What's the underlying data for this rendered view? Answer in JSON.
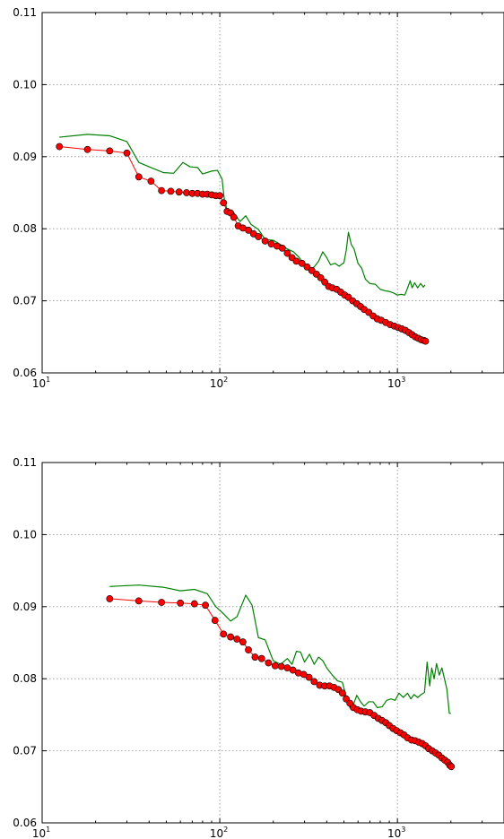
{
  "chart_data": [
    {
      "type": "line",
      "title": "",
      "xlabel": "",
      "ylabel": "",
      "xscale": "log",
      "xlim": [
        10,
        3981
      ],
      "ylim": [
        0.06,
        0.11
      ],
      "grid": true,
      "x_ticks": [
        {
          "base": "10",
          "exp": "1"
        },
        {
          "base": "10",
          "exp": "2"
        },
        {
          "base": "10",
          "exp": "3"
        }
      ],
      "y_ticks": [
        "0.06",
        "0.07",
        "0.08",
        "0.09",
        "0.10",
        "0.11"
      ],
      "series": [
        {
          "style": "line",
          "color": "#008000",
          "points": [
            [
              12.5,
              0.0927
            ],
            [
              18,
              0.0931
            ],
            [
              24,
              0.0929
            ],
            [
              30,
              0.0921
            ],
            [
              35,
              0.0892
            ],
            [
              40,
              0.0886
            ],
            [
              48,
              0.0878
            ],
            [
              55,
              0.0877
            ],
            [
              62,
              0.0892
            ],
            [
              68,
              0.0886
            ],
            [
              75,
              0.0885
            ],
            [
              80,
              0.0876
            ],
            [
              90,
              0.088
            ],
            [
              97,
              0.0881
            ],
            [
              103,
              0.0869
            ],
            [
              106,
              0.0841
            ],
            [
              110,
              0.0826
            ],
            [
              120,
              0.0822
            ],
            [
              130,
              0.081
            ],
            [
              140,
              0.0818
            ],
            [
              150,
              0.0806
            ],
            [
              165,
              0.0799
            ],
            [
              180,
              0.0785
            ],
            [
              200,
              0.0784
            ],
            [
              220,
              0.0778
            ],
            [
              240,
              0.0772
            ],
            [
              260,
              0.0768
            ],
            [
              280,
              0.076
            ],
            [
              300,
              0.075
            ],
            [
              320,
              0.0743
            ],
            [
              340,
              0.0747
            ],
            [
              360,
              0.0755
            ],
            [
              380,
              0.0768
            ],
            [
              400,
              0.076
            ],
            [
              420,
              0.075
            ],
            [
              445,
              0.0752
            ],
            [
              470,
              0.0748
            ],
            [
              500,
              0.0753
            ],
            [
              515,
              0.077
            ],
            [
              530,
              0.0795
            ],
            [
              550,
              0.0778
            ],
            [
              570,
              0.0772
            ],
            [
              600,
              0.0752
            ],
            [
              630,
              0.0745
            ],
            [
              660,
              0.073
            ],
            [
              700,
              0.0724
            ],
            [
              750,
              0.0723
            ],
            [
              800,
              0.0716
            ],
            [
              850,
              0.0714
            ],
            [
              900,
              0.0713
            ],
            [
              950,
              0.0711
            ],
            [
              1000,
              0.0708
            ],
            [
              1050,
              0.0709
            ],
            [
              1100,
              0.0708
            ],
            [
              1150,
              0.072
            ],
            [
              1180,
              0.0728
            ],
            [
              1210,
              0.0718
            ],
            [
              1250,
              0.0725
            ],
            [
              1300,
              0.0718
            ],
            [
              1350,
              0.0724
            ],
            [
              1400,
              0.0719
            ],
            [
              1430,
              0.0722
            ]
          ]
        },
        {
          "style": "markers",
          "color": "#ff0000",
          "marker_edge": "#000000",
          "points": [
            [
              12.5,
              0.0914
            ],
            [
              18,
              0.091
            ],
            [
              24,
              0.0908
            ],
            [
              30,
              0.0905
            ],
            [
              35,
              0.0872
            ],
            [
              41,
              0.0866
            ],
            [
              47,
              0.0853
            ],
            [
              53,
              0.0852
            ],
            [
              59,
              0.0851
            ],
            [
              65,
              0.085
            ],
            [
              70,
              0.0849
            ],
            [
              75,
              0.0849
            ],
            [
              80,
              0.0848
            ],
            [
              85,
              0.0848
            ],
            [
              90,
              0.0847
            ],
            [
              95,
              0.0846
            ],
            [
              100,
              0.0846
            ],
            [
              105,
              0.0836
            ],
            [
              110,
              0.0824
            ],
            [
              115,
              0.0822
            ],
            [
              120,
              0.0816
            ],
            [
              127,
              0.0804
            ],
            [
              135,
              0.0801
            ],
            [
              145,
              0.0798
            ],
            [
              155,
              0.0793
            ],
            [
              165,
              0.0789
            ],
            [
              180,
              0.0783
            ],
            [
              195,
              0.0779
            ],
            [
              210,
              0.0776
            ],
            [
              225,
              0.0773
            ],
            [
              240,
              0.0766
            ],
            [
              255,
              0.076
            ],
            [
              270,
              0.0755
            ],
            [
              290,
              0.0752
            ],
            [
              310,
              0.0747
            ],
            [
              330,
              0.0742
            ],
            [
              350,
              0.0737
            ],
            [
              370,
              0.0732
            ],
            [
              390,
              0.0726
            ],
            [
              410,
              0.072
            ],
            [
              430,
              0.0718
            ],
            [
              455,
              0.0716
            ],
            [
              480,
              0.0712
            ],
            [
              505,
              0.0708
            ],
            [
              530,
              0.0705
            ],
            [
              560,
              0.07
            ],
            [
              590,
              0.0696
            ],
            [
              620,
              0.0692
            ],
            [
              650,
              0.0688
            ],
            [
              690,
              0.0684
            ],
            [
              730,
              0.0679
            ],
            [
              770,
              0.0675
            ],
            [
              810,
              0.0673
            ],
            [
              860,
              0.067
            ],
            [
              910,
              0.0667
            ],
            [
              960,
              0.0665
            ],
            [
              1010,
              0.0663
            ],
            [
              1060,
              0.0661
            ],
            [
              1110,
              0.0659
            ],
            [
              1160,
              0.0656
            ],
            [
              1210,
              0.0653
            ],
            [
              1260,
              0.065
            ],
            [
              1310,
              0.0648
            ],
            [
              1360,
              0.0646
            ],
            [
              1410,
              0.0645
            ],
            [
              1440,
              0.0644
            ]
          ]
        }
      ]
    },
    {
      "type": "line",
      "title": "",
      "xlabel": "",
      "ylabel": "",
      "xscale": "log",
      "xlim": [
        10,
        3981
      ],
      "ylim": [
        0.06,
        0.11
      ],
      "grid": true,
      "x_ticks": [
        {
          "base": "10",
          "exp": "1"
        },
        {
          "base": "10",
          "exp": "2"
        },
        {
          "base": "10",
          "exp": "3"
        }
      ],
      "y_ticks": [
        "0.06",
        "0.07",
        "0.08",
        "0.09",
        "0.10",
        "0.11"
      ],
      "series": [
        {
          "style": "line",
          "color": "#008000",
          "points": [
            [
              24,
              0.0928
            ],
            [
              35,
              0.093
            ],
            [
              48,
              0.0927
            ],
            [
              60,
              0.0922
            ],
            [
              72,
              0.0924
            ],
            [
              85,
              0.0918
            ],
            [
              95,
              0.09
            ],
            [
              105,
              0.089
            ],
            [
              115,
              0.088
            ],
            [
              125,
              0.0886
            ],
            [
              140,
              0.0916
            ],
            [
              152,
              0.0902
            ],
            [
              165,
              0.0857
            ],
            [
              180,
              0.0854
            ],
            [
              200,
              0.0825
            ],
            [
              220,
              0.082
            ],
            [
              240,
              0.0828
            ],
            [
              255,
              0.082
            ],
            [
              270,
              0.0838
            ],
            [
              285,
              0.0837
            ],
            [
              300,
              0.0823
            ],
            [
              320,
              0.0834
            ],
            [
              340,
              0.082
            ],
            [
              360,
              0.083
            ],
            [
              380,
              0.0825
            ],
            [
              400,
              0.0815
            ],
            [
              430,
              0.0805
            ],
            [
              460,
              0.0797
            ],
            [
              490,
              0.0795
            ],
            [
              510,
              0.0779
            ],
            [
              540,
              0.076
            ],
            [
              560,
              0.0761
            ],
            [
              590,
              0.0777
            ],
            [
              620,
              0.0768
            ],
            [
              650,
              0.0762
            ],
            [
              690,
              0.0768
            ],
            [
              730,
              0.0768
            ],
            [
              770,
              0.076
            ],
            [
              820,
              0.0761
            ],
            [
              870,
              0.077
            ],
            [
              920,
              0.0772
            ],
            [
              970,
              0.077
            ],
            [
              1020,
              0.078
            ],
            [
              1080,
              0.0774
            ],
            [
              1140,
              0.078
            ],
            [
              1190,
              0.0772
            ],
            [
              1240,
              0.0778
            ],
            [
              1300,
              0.0774
            ],
            [
              1360,
              0.0778
            ],
            [
              1420,
              0.0781
            ],
            [
              1470,
              0.0823
            ],
            [
              1520,
              0.079
            ],
            [
              1560,
              0.0815
            ],
            [
              1610,
              0.08
            ],
            [
              1660,
              0.0821
            ],
            [
              1720,
              0.0805
            ],
            [
              1780,
              0.0815
            ],
            [
              1840,
              0.08
            ],
            [
              1900,
              0.0785
            ],
            [
              1960,
              0.0752
            ],
            [
              2000,
              0.0752
            ]
          ]
        },
        {
          "style": "markers",
          "color": "#ff0000",
          "marker_edge": "#000000",
          "points": [
            [
              24,
              0.0911
            ],
            [
              35,
              0.0908
            ],
            [
              47,
              0.0906
            ],
            [
              60,
              0.0905
            ],
            [
              72,
              0.0904
            ],
            [
              83,
              0.0902
            ],
            [
              94,
              0.0881
            ],
            [
              105,
              0.0862
            ],
            [
              115,
              0.0858
            ],
            [
              125,
              0.0855
            ],
            [
              135,
              0.0851
            ],
            [
              145,
              0.084
            ],
            [
              158,
              0.083
            ],
            [
              172,
              0.0828
            ],
            [
              188,
              0.0822
            ],
            [
              205,
              0.0818
            ],
            [
              222,
              0.0817
            ],
            [
              240,
              0.0815
            ],
            [
              258,
              0.0812
            ],
            [
              277,
              0.0808
            ],
            [
              297,
              0.0806
            ],
            [
              318,
              0.0802
            ],
            [
              340,
              0.0796
            ],
            [
              365,
              0.0791
            ],
            [
              390,
              0.079
            ],
            [
              415,
              0.079
            ],
            [
              440,
              0.0788
            ],
            [
              465,
              0.0785
            ],
            [
              490,
              0.078
            ],
            [
              515,
              0.0772
            ],
            [
              540,
              0.0766
            ],
            [
              565,
              0.076
            ],
            [
              595,
              0.0757
            ],
            [
              625,
              0.0755
            ],
            [
              660,
              0.0754
            ],
            [
              700,
              0.0753
            ],
            [
              740,
              0.0749
            ],
            [
              780,
              0.0745
            ],
            [
              820,
              0.0742
            ],
            [
              860,
              0.0739
            ],
            [
              900,
              0.0735
            ],
            [
              945,
              0.0731
            ],
            [
              990,
              0.0728
            ],
            [
              1040,
              0.0725
            ],
            [
              1090,
              0.0722
            ],
            [
              1140,
              0.0718
            ],
            [
              1200,
              0.0715
            ],
            [
              1260,
              0.0714
            ],
            [
              1320,
              0.0712
            ],
            [
              1380,
              0.071
            ],
            [
              1440,
              0.0707
            ],
            [
              1500,
              0.0703
            ],
            [
              1570,
              0.07
            ],
            [
              1640,
              0.0697
            ],
            [
              1710,
              0.0694
            ],
            [
              1780,
              0.069
            ],
            [
              1850,
              0.0687
            ],
            [
              1920,
              0.0684
            ],
            [
              1970,
              0.068
            ],
            [
              2010,
              0.0678
            ]
          ]
        }
      ]
    }
  ]
}
